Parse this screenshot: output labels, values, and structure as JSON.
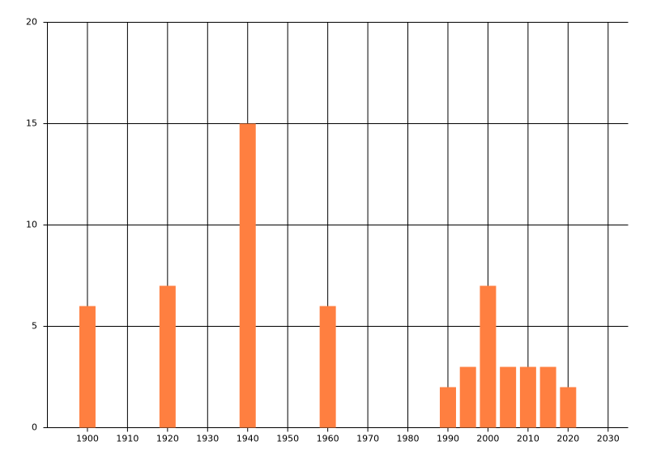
{
  "chart_data": {
    "type": "bar",
    "x": [
      1900,
      1920,
      1940,
      1960,
      1990,
      1995,
      2000,
      2005,
      2010,
      2015,
      2020
    ],
    "values": [
      6,
      7,
      15,
      6,
      2,
      3,
      7,
      3,
      3,
      3,
      2
    ],
    "color": "#ff7f40",
    "xlim": [
      1890,
      2035
    ],
    "xticks": [
      1900,
      1910,
      1920,
      1930,
      1940,
      1950,
      1960,
      1970,
      1980,
      1990,
      2000,
      2010,
      2020,
      2030
    ],
    "ylim": [
      0,
      20
    ],
    "yticks": [
      0,
      5,
      10,
      15,
      20
    ],
    "grid": true
  }
}
